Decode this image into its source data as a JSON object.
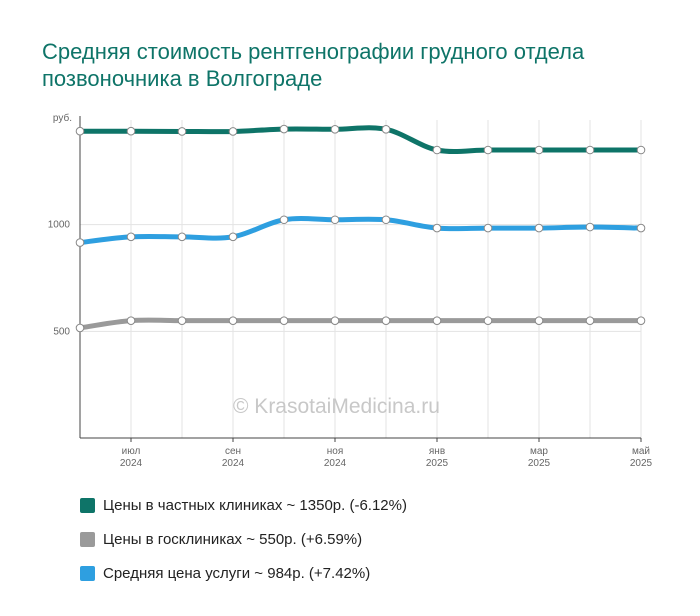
{
  "title": "Средняя стоимость рентгенографии грудного отдела позвоночника в Волгограде",
  "watermark": "© KrasotaiMedicina.ru",
  "colors": {
    "private": "#0e7468",
    "public": "#9a9a9a",
    "average": "#2e9fe0"
  },
  "chart_data": {
    "type": "line",
    "ylabel": "руб.",
    "ylim": [
      0,
      1500
    ],
    "y_ticks": [
      500,
      1000
    ],
    "grid": true,
    "x": [
      0,
      1,
      2,
      3,
      4,
      5,
      6,
      7,
      8,
      9,
      10,
      11
    ],
    "x_tick_labels": [
      {
        "month": "июл",
        "year": "2024"
      },
      {
        "month": "сен",
        "year": "2024"
      },
      {
        "month": "ноя",
        "year": "2024"
      },
      {
        "month": "янв",
        "year": "2025"
      },
      {
        "month": "мар",
        "year": "2025"
      },
      {
        "month": "май",
        "year": "2025"
      }
    ],
    "series": [
      {
        "name": "Цены в частных клиниках",
        "color": "#0e7468",
        "values": [
          1438,
          1438,
          1437,
          1437,
          1448,
          1447,
          1447,
          1350,
          1350,
          1350,
          1350,
          1350
        ]
      },
      {
        "name": "Средняя цена услуги",
        "color": "#2e9fe0",
        "values": [
          916,
          943,
          943,
          943,
          1023,
          1023,
          1023,
          984,
          984,
          984,
          989,
          984
        ]
      },
      {
        "name": "Цены в госклиниках",
        "color": "#9a9a9a",
        "values": [
          516,
          550,
          550,
          550,
          550,
          550,
          550,
          550,
          550,
          550,
          550,
          550
        ]
      }
    ]
  },
  "legend": [
    {
      "label": "Цены в частных клиниках ~ 1350р. (-6.12%)",
      "color": "#0e7468"
    },
    {
      "label": "Цены в госклиниках ~ 550р. (+6.59%)",
      "color": "#9a9a9a"
    },
    {
      "label": "Средняя цена услуги ~ 984р. (+7.42%)",
      "color": "#2e9fe0"
    }
  ]
}
